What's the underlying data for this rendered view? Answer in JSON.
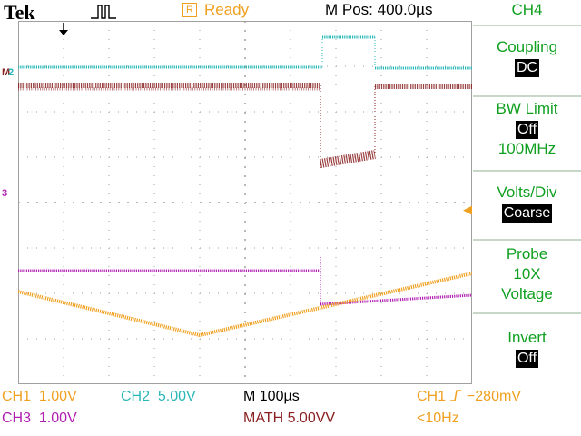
{
  "header": {
    "brand": "Tek",
    "acq_icon": "acquisition-pulse-icon",
    "run_badge": "R",
    "run_status": "Ready",
    "mpos": "M Pos: 400.0µs"
  },
  "markers": {
    "math": "M",
    "ch2": "2",
    "ch3": "3",
    "trigger_level": "◀"
  },
  "menu": {
    "title": "CH4",
    "items": [
      {
        "label": "Coupling",
        "value": "DC",
        "boxed": true
      },
      {
        "label": "BW Limit",
        "value": "Off",
        "boxed": true,
        "extra": "100MHz"
      },
      {
        "label": "Volts/Div",
        "value": "Coarse",
        "boxed": true
      },
      {
        "label": "Probe",
        "value": "10X",
        "boxed": false,
        "extra": "Voltage"
      },
      {
        "label": "Invert",
        "value": "Off",
        "boxed": true
      }
    ]
  },
  "readout": {
    "ch1": {
      "name": "CH1",
      "scale": "1.00V"
    },
    "ch2": {
      "name": "CH2",
      "scale": "5.00V"
    },
    "ch3": {
      "name": "CH3",
      "scale": "1.00V"
    },
    "timebase": "M 100µs",
    "math": "MATH 5.00VV",
    "trigger": {
      "source": "CH1",
      "slope_icon": "rising-edge-icon",
      "level": "−280mV"
    },
    "trigger_freq": "<10Hz"
  },
  "colors": {
    "ch1": "#f0a020",
    "ch2": "#2ab8b8",
    "ch3": "#b020b0",
    "math": "#8a1f1f",
    "menu": "#10a020",
    "grid": "#a0a0a0"
  }
}
